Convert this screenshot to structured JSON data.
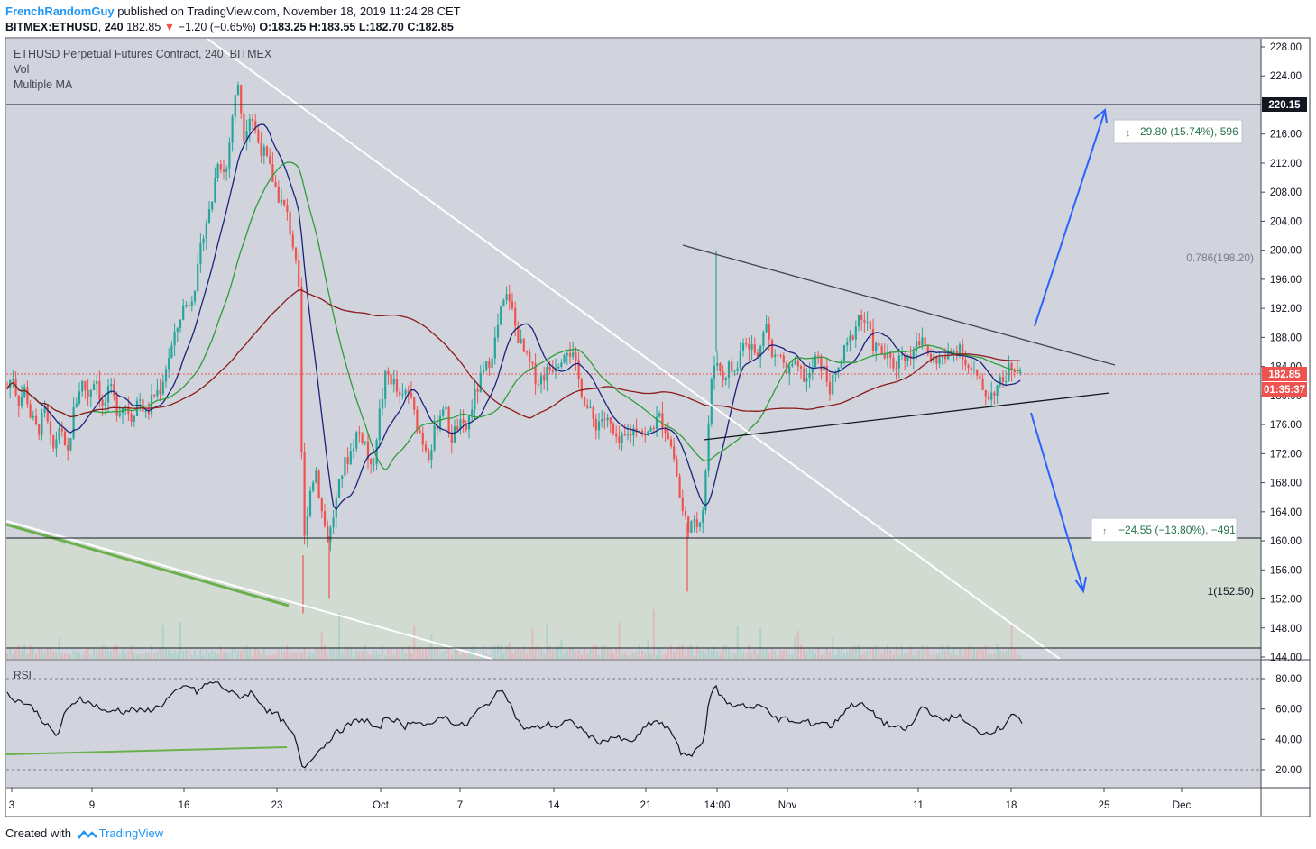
{
  "header": {
    "author": "FrenchRandomGuy",
    "published": "published on TradingView.com, November 18, 2019 11:24:28 CET",
    "symbol": "BITMEX:ETHUSD",
    "interval": "240",
    "last": "182.85",
    "change": "−1.20 (−0.65%)",
    "open": "O:183.25",
    "high": "H:183.55",
    "low": "L:182.70",
    "close": "C:182.85"
  },
  "legend": {
    "title": "ETHUSD Perpetual Futures Contract, 240, BITMEX",
    "vol": "Vol",
    "ma": "Multiple MA",
    "rsi": "RSI"
  },
  "footer": {
    "created_with": "Created with",
    "brand": "TradingView"
  },
  "colors": {
    "up": "#26a69a",
    "down": "#ef5350",
    "ma_fast": "#1a237e",
    "ma_mid": "#2e9d3a",
    "ma_slow": "#8b1a1a",
    "arrow": "#2962ff",
    "trend_green": "#6ab04c",
    "box": "#e8f0e8"
  },
  "annotations": {
    "target_up": "29.80 (15.74%), 596",
    "target_down": "−24.55 (−13.80%), −491",
    "fib_786": "0.786(198.20)",
    "fib_1": "1(152.50)",
    "price_level": "220.15",
    "current_price": "182.85",
    "countdown": "01:35:37"
  },
  "chart_data": {
    "type": "candlestick",
    "title": "ETHUSD Perpetual Futures Contract, 240, BITMEX",
    "price_axis": {
      "ticks": [
        "228.00",
        "224.00",
        "220.00",
        "216.00",
        "212.00",
        "208.00",
        "204.00",
        "200.00",
        "196.00",
        "192.00",
        "188.00",
        "184.00",
        "180.00",
        "176.00",
        "172.00",
        "168.00",
        "164.00",
        "160.00",
        "156.00",
        "152.00",
        "148.00",
        "144.00"
      ],
      "range": [
        144,
        228
      ]
    },
    "rsi_axis": {
      "ticks": [
        "80.00",
        "60.00",
        "40.00",
        "20.00"
      ],
      "range": [
        14,
        84
      ]
    },
    "time_axis": {
      "ticks": [
        "3",
        "9",
        "16",
        "23",
        "Oct",
        "7",
        "14",
        "21",
        "14:00",
        "Nov",
        "11",
        "18",
        "25",
        "Dec"
      ]
    },
    "price_path": [
      [
        0,
        181
      ],
      [
        6,
        183
      ],
      [
        12,
        179
      ],
      [
        20,
        181
      ],
      [
        26,
        177
      ],
      [
        34,
        175
      ],
      [
        42,
        178
      ],
      [
        50,
        172
      ],
      [
        58,
        176
      ],
      [
        66,
        171
      ],
      [
        74,
        178
      ],
      [
        82,
        182
      ],
      [
        90,
        180
      ],
      [
        98,
        183
      ],
      [
        106,
        178
      ],
      [
        114,
        181
      ],
      [
        122,
        178
      ],
      [
        130,
        179
      ],
      [
        138,
        177
      ],
      [
        146,
        180
      ],
      [
        154,
        177
      ],
      [
        162,
        180
      ],
      [
        170,
        181
      ],
      [
        178,
        185
      ],
      [
        186,
        188
      ],
      [
        194,
        192
      ],
      [
        202,
        193
      ],
      [
        210,
        196
      ],
      [
        218,
        203
      ],
      [
        226,
        206
      ],
      [
        234,
        213
      ],
      [
        242,
        210
      ],
      [
        250,
        219
      ],
      [
        256,
        223
      ],
      [
        262,
        216
      ],
      [
        270,
        219
      ],
      [
        278,
        215
      ],
      [
        286,
        213
      ],
      [
        294,
        210
      ],
      [
        302,
        207
      ],
      [
        310,
        205
      ],
      [
        318,
        200
      ],
      [
        324,
        193
      ],
      [
        328,
        158
      ],
      [
        334,
        166
      ],
      [
        342,
        170
      ],
      [
        350,
        163
      ],
      [
        356,
        160
      ],
      [
        364,
        165
      ],
      [
        372,
        170
      ],
      [
        380,
        172
      ],
      [
        388,
        175
      ],
      [
        396,
        174
      ],
      [
        404,
        169
      ],
      [
        412,
        177
      ],
      [
        420,
        183
      ],
      [
        428,
        182
      ],
      [
        436,
        179
      ],
      [
        444,
        181
      ],
      [
        452,
        177
      ],
      [
        460,
        174
      ],
      [
        468,
        172
      ],
      [
        476,
        176
      ],
      [
        484,
        179
      ],
      [
        492,
        174
      ],
      [
        500,
        176
      ],
      [
        508,
        175
      ],
      [
        516,
        179
      ],
      [
        524,
        182
      ],
      [
        532,
        184
      ],
      [
        540,
        187
      ],
      [
        548,
        192
      ],
      [
        556,
        194
      ],
      [
        564,
        189
      ],
      [
        572,
        186
      ],
      [
        580,
        184
      ],
      [
        588,
        182
      ],
      [
        596,
        183
      ],
      [
        604,
        184
      ],
      [
        612,
        185
      ],
      [
        620,
        187
      ],
      [
        628,
        185
      ],
      [
        636,
        181
      ],
      [
        644,
        178
      ],
      [
        652,
        176
      ],
      [
        660,
        177
      ],
      [
        668,
        176
      ],
      [
        676,
        173
      ],
      [
        684,
        174
      ],
      [
        692,
        175
      ],
      [
        700,
        176
      ],
      [
        708,
        174
      ],
      [
        716,
        176
      ],
      [
        724,
        177
      ],
      [
        732,
        175
      ],
      [
        740,
        171
      ],
      [
        748,
        164
      ],
      [
        756,
        162
      ],
      [
        764,
        162
      ],
      [
        772,
        165
      ],
      [
        780,
        181
      ],
      [
        786,
        186
      ],
      [
        792,
        182
      ],
      [
        800,
        184
      ],
      [
        808,
        183
      ],
      [
        816,
        188
      ],
      [
        824,
        187
      ],
      [
        832,
        185
      ],
      [
        840,
        191
      ],
      [
        848,
        185
      ],
      [
        856,
        186
      ],
      [
        864,
        183
      ],
      [
        872,
        184
      ],
      [
        880,
        183
      ],
      [
        888,
        182
      ],
      [
        896,
        185
      ],
      [
        904,
        184
      ],
      [
        912,
        181
      ],
      [
        920,
        183
      ],
      [
        928,
        186
      ],
      [
        936,
        188
      ],
      [
        944,
        191
      ],
      [
        952,
        190
      ],
      [
        960,
        187
      ],
      [
        968,
        186
      ],
      [
        976,
        185
      ],
      [
        984,
        184
      ],
      [
        992,
        186
      ],
      [
        1000,
        185
      ],
      [
        1008,
        188
      ],
      [
        1016,
        187
      ],
      [
        1024,
        185
      ],
      [
        1032,
        185
      ],
      [
        1040,
        185
      ],
      [
        1048,
        186
      ],
      [
        1056,
        187
      ],
      [
        1064,
        184
      ],
      [
        1072,
        183
      ],
      [
        1080,
        181
      ],
      [
        1088,
        180
      ],
      [
        1096,
        181
      ],
      [
        1104,
        182
      ],
      [
        1112,
        184
      ],
      [
        1120,
        184
      ],
      [
        1126,
        183
      ]
    ],
    "rsi_path": [
      [
        0,
        70
      ],
      [
        10,
        66
      ],
      [
        20,
        64
      ],
      [
        30,
        60
      ],
      [
        40,
        52
      ],
      [
        50,
        45
      ],
      [
        56,
        42
      ],
      [
        62,
        55
      ],
      [
        70,
        61
      ],
      [
        80,
        68
      ],
      [
        90,
        64
      ],
      [
        100,
        62
      ],
      [
        110,
        57
      ],
      [
        120,
        60
      ],
      [
        130,
        58
      ],
      [
        140,
        60
      ],
      [
        150,
        58
      ],
      [
        160,
        60
      ],
      [
        170,
        62
      ],
      [
        180,
        68
      ],
      [
        190,
        72
      ],
      [
        200,
        76
      ],
      [
        210,
        71
      ],
      [
        220,
        76
      ],
      [
        230,
        78
      ],
      [
        240,
        74
      ],
      [
        250,
        70
      ],
      [
        260,
        68
      ],
      [
        270,
        71
      ],
      [
        280,
        65
      ],
      [
        290,
        58
      ],
      [
        300,
        56
      ],
      [
        310,
        48
      ],
      [
        320,
        40
      ],
      [
        326,
        22
      ],
      [
        332,
        23
      ],
      [
        340,
        30
      ],
      [
        350,
        35
      ],
      [
        360,
        42
      ],
      [
        370,
        46
      ],
      [
        380,
        50
      ],
      [
        390,
        53
      ],
      [
        400,
        52
      ],
      [
        410,
        45
      ],
      [
        420,
        55
      ],
      [
        430,
        53
      ],
      [
        440,
        48
      ],
      [
        450,
        53
      ],
      [
        460,
        50
      ],
      [
        470,
        48
      ],
      [
        480,
        56
      ],
      [
        490,
        53
      ],
      [
        500,
        49
      ],
      [
        510,
        50
      ],
      [
        520,
        58
      ],
      [
        530,
        62
      ],
      [
        540,
        68
      ],
      [
        550,
        74
      ],
      [
        560,
        60
      ],
      [
        570,
        48
      ],
      [
        580,
        47
      ],
      [
        590,
        48
      ],
      [
        600,
        50
      ],
      [
        610,
        48
      ],
      [
        620,
        52
      ],
      [
        630,
        50
      ],
      [
        640,
        45
      ],
      [
        650,
        40
      ],
      [
        660,
        38
      ],
      [
        670,
        42
      ],
      [
        680,
        40
      ],
      [
        690,
        38
      ],
      [
        700,
        42
      ],
      [
        710,
        50
      ],
      [
        720,
        52
      ],
      [
        730,
        48
      ],
      [
        740,
        42
      ],
      [
        748,
        30
      ],
      [
        756,
        28
      ],
      [
        764,
        34
      ],
      [
        772,
        38
      ],
      [
        778,
        68
      ],
      [
        786,
        74
      ],
      [
        794,
        66
      ],
      [
        804,
        62
      ],
      [
        814,
        64
      ],
      [
        824,
        60
      ],
      [
        834,
        62
      ],
      [
        844,
        60
      ],
      [
        854,
        52
      ],
      [
        864,
        54
      ],
      [
        874,
        50
      ],
      [
        884,
        52
      ],
      [
        894,
        50
      ],
      [
        904,
        52
      ],
      [
        914,
        48
      ],
      [
        924,
        56
      ],
      [
        934,
        62
      ],
      [
        944,
        64
      ],
      [
        954,
        60
      ],
      [
        964,
        55
      ],
      [
        974,
        50
      ],
      [
        984,
        48
      ],
      [
        994,
        46
      ],
      [
        1004,
        50
      ],
      [
        1014,
        62
      ],
      [
        1024,
        58
      ],
      [
        1034,
        52
      ],
      [
        1044,
        54
      ],
      [
        1054,
        56
      ],
      [
        1064,
        50
      ],
      [
        1074,
        46
      ],
      [
        1084,
        44
      ],
      [
        1094,
        46
      ],
      [
        1104,
        48
      ],
      [
        1114,
        58
      ],
      [
        1120,
        54
      ],
      [
        1126,
        48
      ]
    ],
    "series": [
      {
        "name": "Multiple MA (fast)",
        "color": "#1a237e"
      },
      {
        "name": "Multiple MA (mid)",
        "color": "#2e9d3a"
      },
      {
        "name": "Multiple MA (slow)",
        "color": "#8b1a1a"
      }
    ],
    "grid": false
  }
}
